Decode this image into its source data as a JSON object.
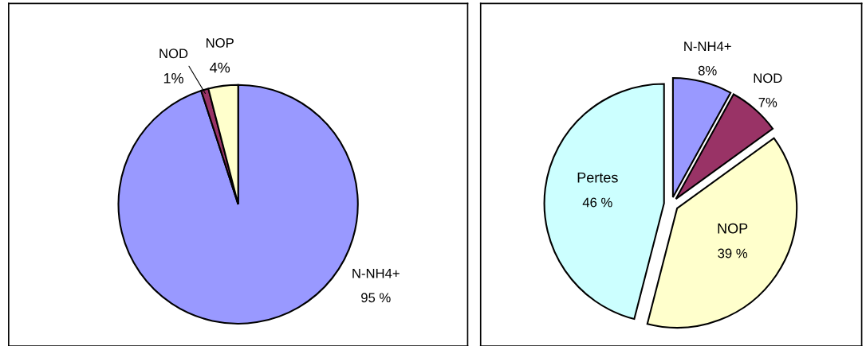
{
  "chart_data": [
    {
      "type": "pie",
      "categories": [
        "N-NH4+",
        "NOD",
        "NOP"
      ],
      "values": [
        95,
        1,
        4
      ],
      "colors": [
        "#9999ff",
        "#993366",
        "#ffffcc"
      ],
      "value_labels": [
        "95 %",
        "1%",
        "4%"
      ]
    },
    {
      "type": "pie",
      "categories": [
        "N-NH4+",
        "NOD",
        "NOP",
        "Pertes"
      ],
      "values": [
        8,
        7,
        39,
        46
      ],
      "colors": [
        "#9999ff",
        "#993366",
        "#ffffcc",
        "#ccffff"
      ],
      "value_labels": [
        "8%",
        "7%",
        "39 %",
        "46 %"
      ]
    }
  ]
}
